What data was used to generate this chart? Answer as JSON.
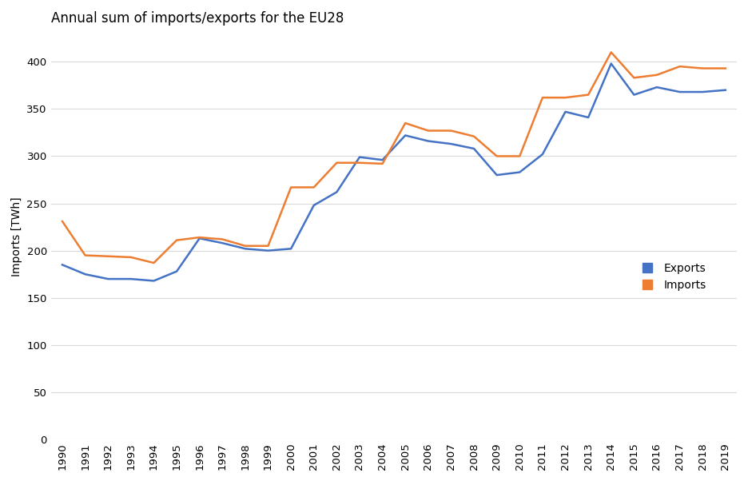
{
  "title": "Annual sum of imports/exports for the EU28",
  "ylabel": "Imports [TWh]",
  "years": [
    1990,
    1991,
    1992,
    1993,
    1994,
    1995,
    1996,
    1997,
    1998,
    1999,
    2000,
    2001,
    2002,
    2003,
    2004,
    2005,
    2006,
    2007,
    2008,
    2009,
    2010,
    2011,
    2012,
    2013,
    2014,
    2015,
    2016,
    2017,
    2018,
    2019
  ],
  "exports": [
    185,
    175,
    170,
    170,
    168,
    178,
    213,
    208,
    202,
    200,
    202,
    248,
    262,
    299,
    296,
    322,
    316,
    313,
    308,
    280,
    283,
    302,
    347,
    341,
    398,
    365,
    373,
    368,
    368,
    370
  ],
  "imports": [
    231,
    195,
    194,
    193,
    187,
    211,
    214,
    212,
    205,
    205,
    267,
    267,
    293,
    293,
    292,
    335,
    327,
    327,
    321,
    300,
    300,
    362,
    362,
    365,
    410,
    383,
    386,
    395,
    393,
    393
  ],
  "exports_color": "#4472c4",
  "imports_color": "#ed7d31",
  "background_color": "#ffffff",
  "grid_color": "#d9d9d9",
  "ylim": [
    0,
    430
  ],
  "yticks": [
    0,
    50,
    100,
    150,
    200,
    250,
    300,
    350,
    400
  ],
  "legend_labels": [
    "Exports",
    "Imports"
  ],
  "title_fontsize": 12,
  "axis_fontsize": 10,
  "tick_fontsize": 9.5
}
